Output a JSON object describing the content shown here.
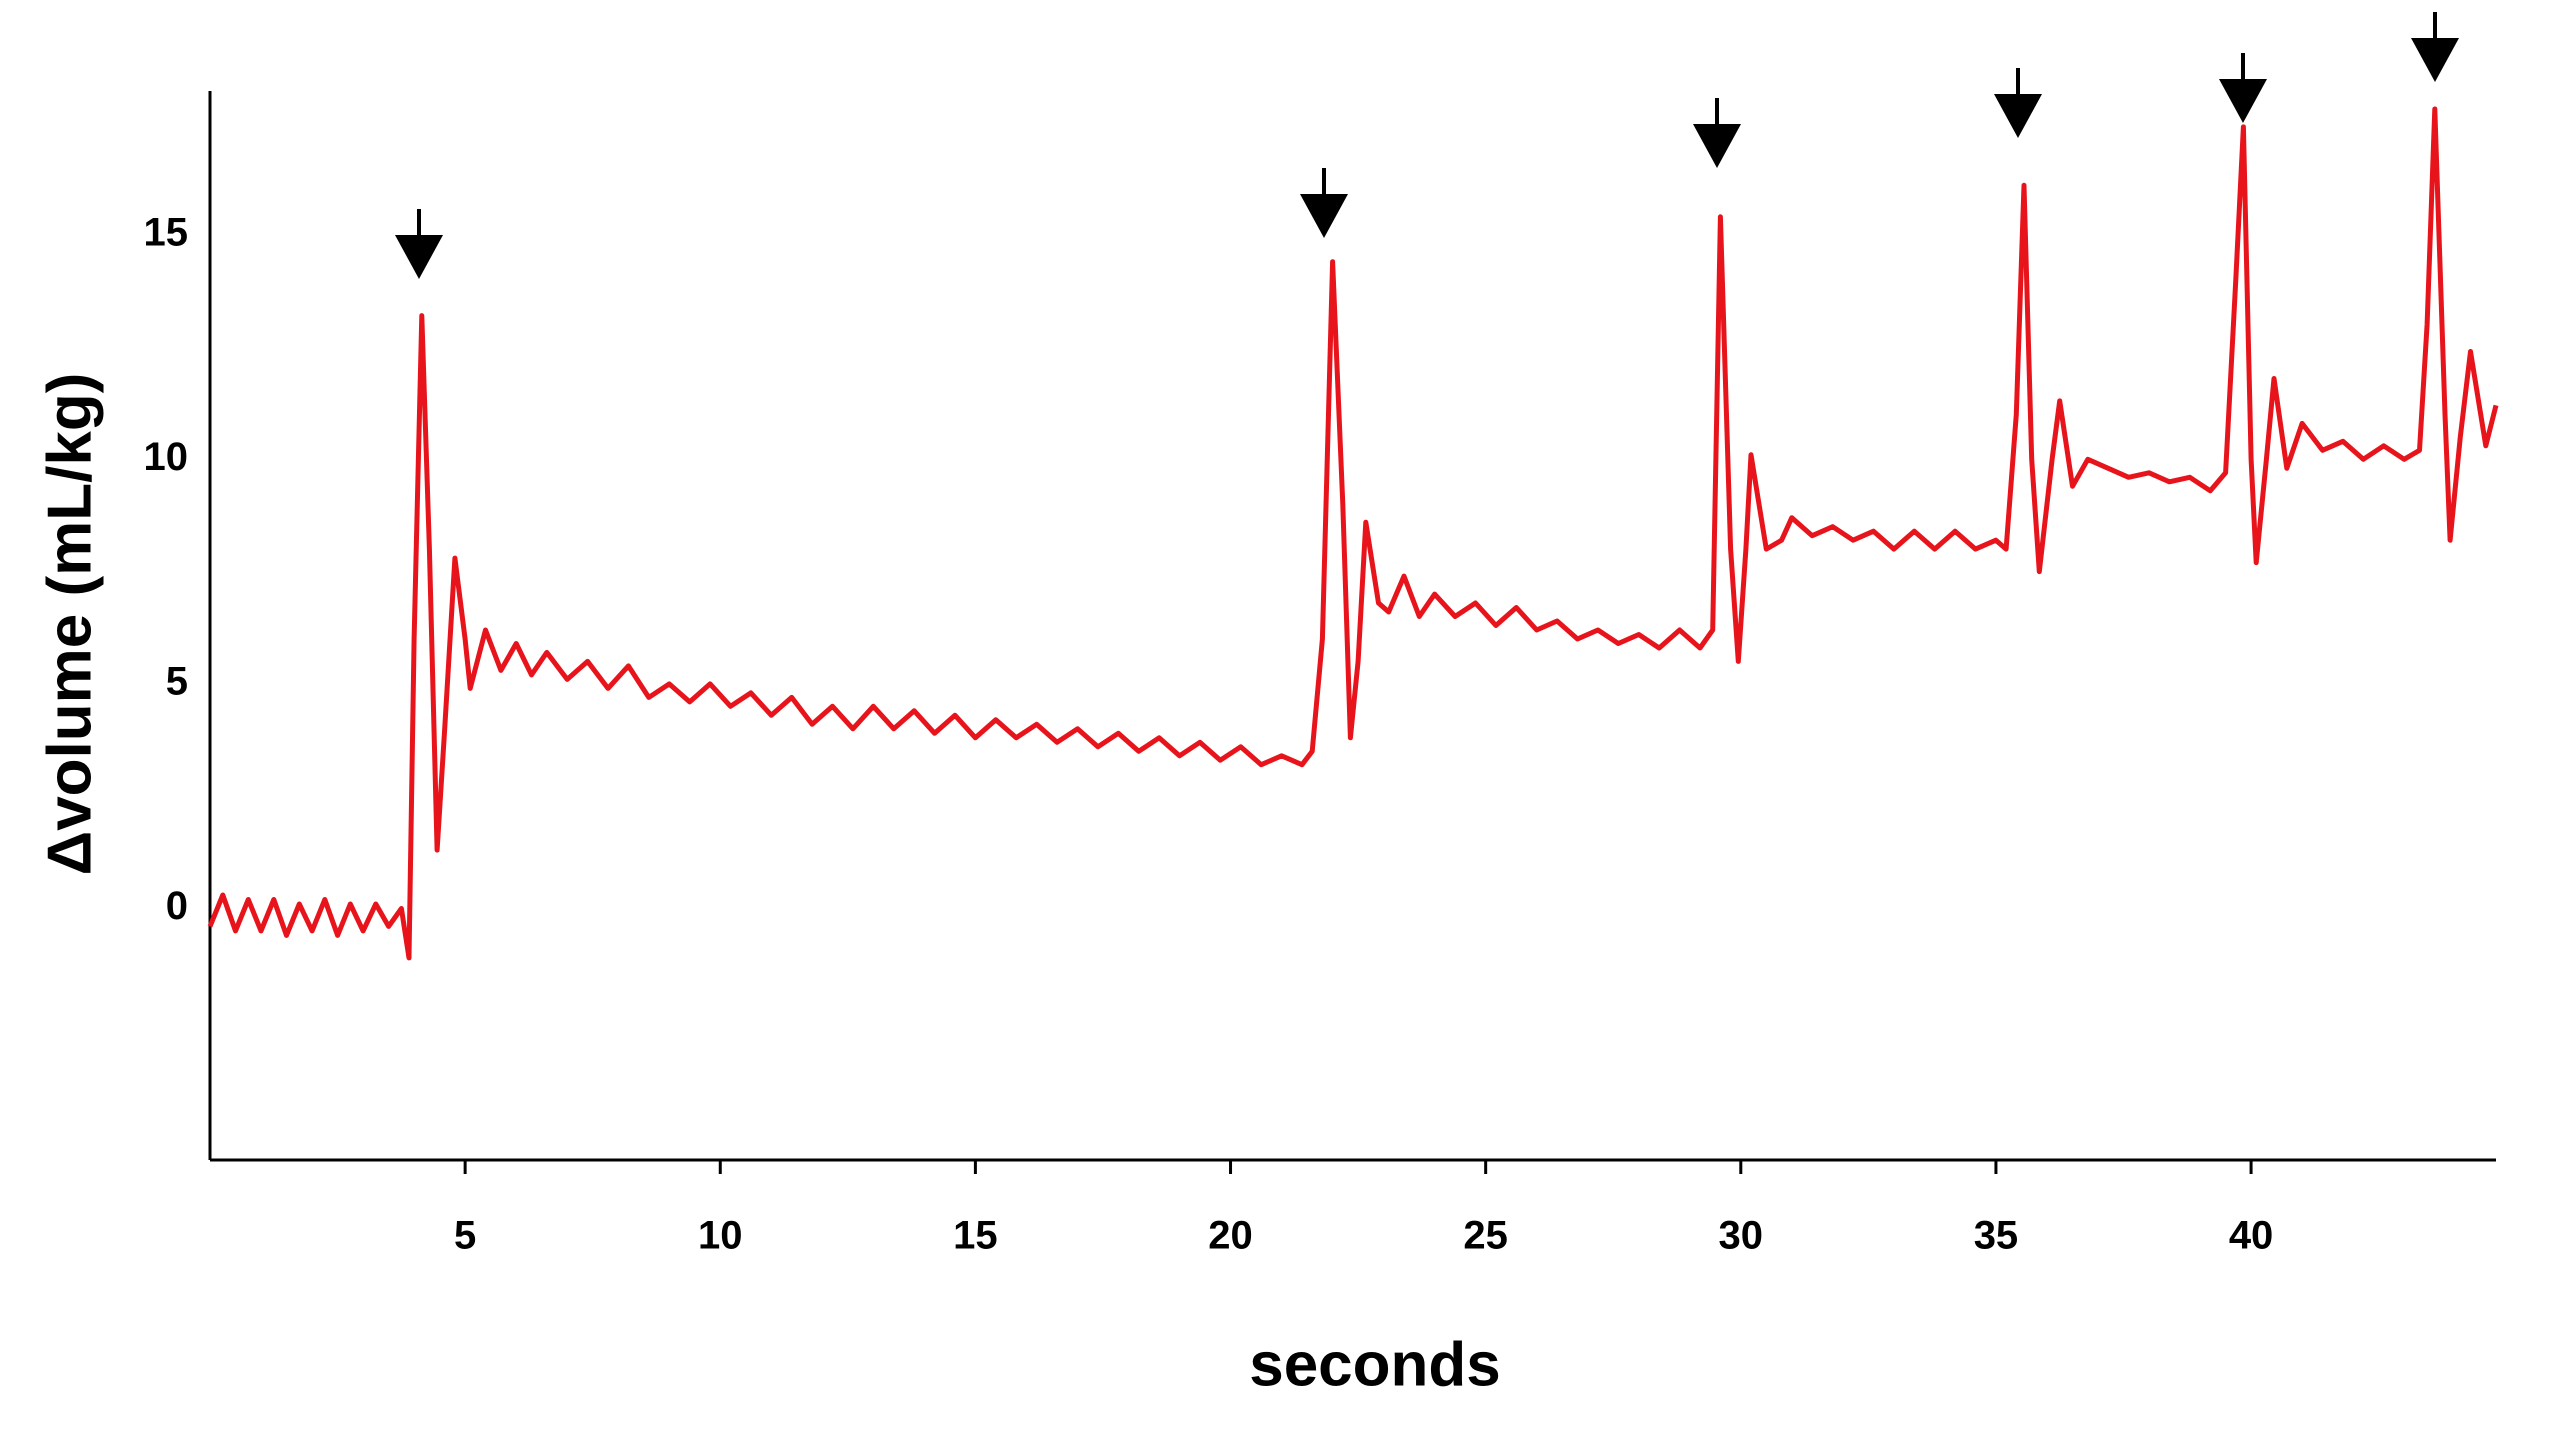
{
  "chart_data": {
    "type": "line",
    "x_label": "seconds",
    "y_label": "Δvolume (mL/kg)",
    "xlim": [
      0,
      44.8
    ],
    "ylim": [
      -5.6,
      18.2
    ],
    "xticks": [
      5,
      10,
      15,
      20,
      25,
      30,
      35,
      40
    ],
    "yticks": [
      0,
      5,
      10,
      15
    ],
    "x": [
      0,
      0.25,
      0.5,
      0.75,
      1.0,
      1.25,
      1.5,
      1.75,
      2.0,
      2.25,
      2.5,
      2.75,
      3.0,
      3.25,
      3.5,
      3.75,
      3.9,
      4.0,
      4.15,
      4.3,
      4.45,
      4.6,
      4.8,
      5.0,
      5.1,
      5.4,
      5.7,
      6.0,
      6.3,
      6.6,
      7.0,
      7.4,
      7.8,
      8.2,
      8.6,
      9.0,
      9.4,
      9.8,
      10.2,
      10.6,
      11.0,
      11.4,
      11.8,
      12.2,
      12.6,
      13.0,
      13.4,
      13.8,
      14.2,
      14.6,
      15.0,
      15.4,
      15.8,
      16.2,
      16.6,
      17.0,
      17.4,
      17.8,
      18.2,
      18.6,
      19.0,
      19.4,
      19.8,
      20.2,
      20.6,
      21.0,
      21.4,
      21.6,
      21.8,
      22.0,
      22.2,
      22.35,
      22.5,
      22.65,
      22.9,
      23.1,
      23.4,
      23.7,
      24.0,
      24.4,
      24.8,
      25.2,
      25.6,
      26.0,
      26.4,
      26.8,
      27.2,
      27.6,
      28.0,
      28.4,
      28.8,
      29.2,
      29.45,
      29.6,
      29.8,
      29.95,
      30.1,
      30.2,
      30.5,
      30.8,
      31.0,
      31.4,
      31.8,
      32.2,
      32.6,
      33.0,
      33.4,
      33.8,
      34.2,
      34.6,
      35.0,
      35.2,
      35.4,
      35.55,
      35.7,
      35.85,
      36.1,
      36.25,
      36.5,
      36.8,
      37.2,
      37.6,
      38.0,
      38.4,
      38.8,
      39.2,
      39.5,
      39.7,
      39.85,
      40.0,
      40.1,
      40.3,
      40.45,
      40.7,
      41.0,
      41.4,
      41.8,
      42.2,
      42.6,
      43.0,
      43.3,
      43.45,
      43.6,
      43.8,
      43.9,
      44.1,
      44.3,
      44.6,
      44.8
    ],
    "series": [
      {
        "color": "#e8141c",
        "values": [
          -0.4,
          0.3,
          -0.5,
          0.2,
          -0.5,
          0.2,
          -0.6,
          0.1,
          -0.5,
          0.2,
          -0.6,
          0.1,
          -0.5,
          0.1,
          -0.4,
          0.0,
          -1.1,
          6,
          13.2,
          8,
          1.3,
          4,
          7.8,
          6,
          4.9,
          6.2,
          5.3,
          5.9,
          5.2,
          5.7,
          5.1,
          5.5,
          4.9,
          5.4,
          4.7,
          5.0,
          4.6,
          5.0,
          4.5,
          4.8,
          4.3,
          4.7,
          4.1,
          4.5,
          4.0,
          4.5,
          4.0,
          4.4,
          3.9,
          4.3,
          3.8,
          4.2,
          3.8,
          4.1,
          3.7,
          4.0,
          3.6,
          3.9,
          3.5,
          3.8,
          3.4,
          3.7,
          3.3,
          3.6,
          3.2,
          3.4,
          3.2,
          3.5,
          6,
          14.4,
          9,
          3.8,
          5.5,
          8.6,
          6.8,
          6.6,
          7.4,
          6.5,
          7.0,
          6.5,
          6.8,
          6.3,
          6.7,
          6.2,
          6.4,
          6.0,
          6.2,
          5.9,
          6.1,
          5.8,
          6.2,
          5.8,
          6.2,
          15.4,
          8,
          5.5,
          8,
          10.1,
          8.0,
          8.2,
          8.7,
          8.3,
          8.5,
          8.2,
          8.4,
          8.0,
          8.4,
          8.0,
          8.4,
          8.0,
          8.2,
          8.0,
          11,
          16.1,
          10,
          7.5,
          10,
          11.3,
          9.4,
          10.0,
          9.8,
          9.6,
          9.7,
          9.5,
          9.6,
          9.3,
          9.7,
          14,
          17.4,
          10,
          7.7,
          10,
          11.8,
          9.8,
          10.8,
          10.2,
          10.4,
          10.0,
          10.3,
          10.0,
          10.2,
          13,
          17.8,
          11,
          8.2,
          10.5,
          12.4,
          10.3,
          11.2
        ]
      }
    ]
  }
}
